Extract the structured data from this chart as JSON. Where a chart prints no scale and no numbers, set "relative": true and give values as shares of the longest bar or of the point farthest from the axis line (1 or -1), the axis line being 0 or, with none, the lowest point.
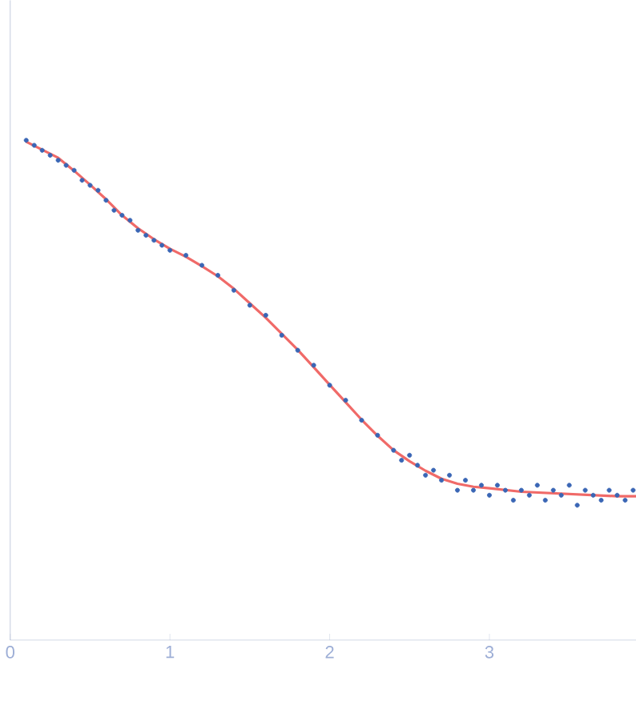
{
  "chart_data": {
    "type": "scatter",
    "relative": true,
    "xlim": [
      0,
      3.92
    ],
    "xticks": [
      0,
      1,
      2,
      3
    ],
    "tick_labels": "x",
    "grid": false,
    "series": [
      {
        "marker": "circle",
        "color": "#3a66b5",
        "x": [
          0.1,
          0.15,
          0.2,
          0.25,
          0.3,
          0.35,
          0.4,
          0.45,
          0.5,
          0.55,
          0.6,
          0.65,
          0.7,
          0.75,
          0.8,
          0.85,
          0.9,
          0.95,
          1.0,
          1.1,
          1.2,
          1.3,
          1.4,
          1.5,
          1.6,
          1.7,
          1.8,
          1.9,
          2.0,
          2.1,
          2.2,
          2.3,
          2.4,
          2.45,
          2.5,
          2.55,
          2.6,
          2.65,
          2.7,
          2.75,
          2.8,
          2.85,
          2.9,
          2.95,
          3.0,
          3.05,
          3.1,
          3.15,
          3.2,
          3.25,
          3.3,
          3.35,
          3.4,
          3.45,
          3.5,
          3.55,
          3.6,
          3.65,
          3.7,
          3.75,
          3.8,
          3.85,
          3.9
        ],
        "values": [
          1.0,
          0.99,
          0.98,
          0.97,
          0.96,
          0.95,
          0.94,
          0.92,
          0.91,
          0.9,
          0.88,
          0.86,
          0.85,
          0.84,
          0.82,
          0.81,
          0.8,
          0.79,
          0.78,
          0.77,
          0.75,
          0.73,
          0.7,
          0.67,
          0.65,
          0.61,
          0.58,
          0.55,
          0.51,
          0.48,
          0.44,
          0.41,
          0.38,
          0.36,
          0.37,
          0.35,
          0.33,
          0.34,
          0.32,
          0.33,
          0.3,
          0.32,
          0.3,
          0.31,
          0.29,
          0.31,
          0.3,
          0.28,
          0.3,
          0.29,
          0.31,
          0.28,
          0.3,
          0.29,
          0.31,
          0.27,
          0.3,
          0.29,
          0.28,
          0.3,
          0.29,
          0.28,
          0.3
        ]
      },
      {
        "type": "line",
        "color": "#f06a68",
        "x": [
          0.1,
          0.2,
          0.3,
          0.4,
          0.5,
          0.6,
          0.7,
          0.8,
          0.9,
          1.0,
          1.1,
          1.2,
          1.3,
          1.4,
          1.5,
          1.6,
          1.7,
          1.8,
          1.9,
          2.0,
          2.1,
          2.2,
          2.3,
          2.4,
          2.5,
          2.6,
          2.7,
          2.8,
          2.9,
          3.0,
          3.2,
          3.4,
          3.6,
          3.8,
          3.92
        ],
        "values": [
          0.997,
          0.981,
          0.965,
          0.939,
          0.911,
          0.882,
          0.85,
          0.824,
          0.802,
          0.783,
          0.767,
          0.748,
          0.728,
          0.703,
          0.674,
          0.645,
          0.613,
          0.581,
          0.546,
          0.511,
          0.476,
          0.441,
          0.409,
          0.38,
          0.358,
          0.339,
          0.323,
          0.313,
          0.307,
          0.304,
          0.297,
          0.294,
          0.291,
          0.288,
          0.288
        ]
      }
    ]
  }
}
